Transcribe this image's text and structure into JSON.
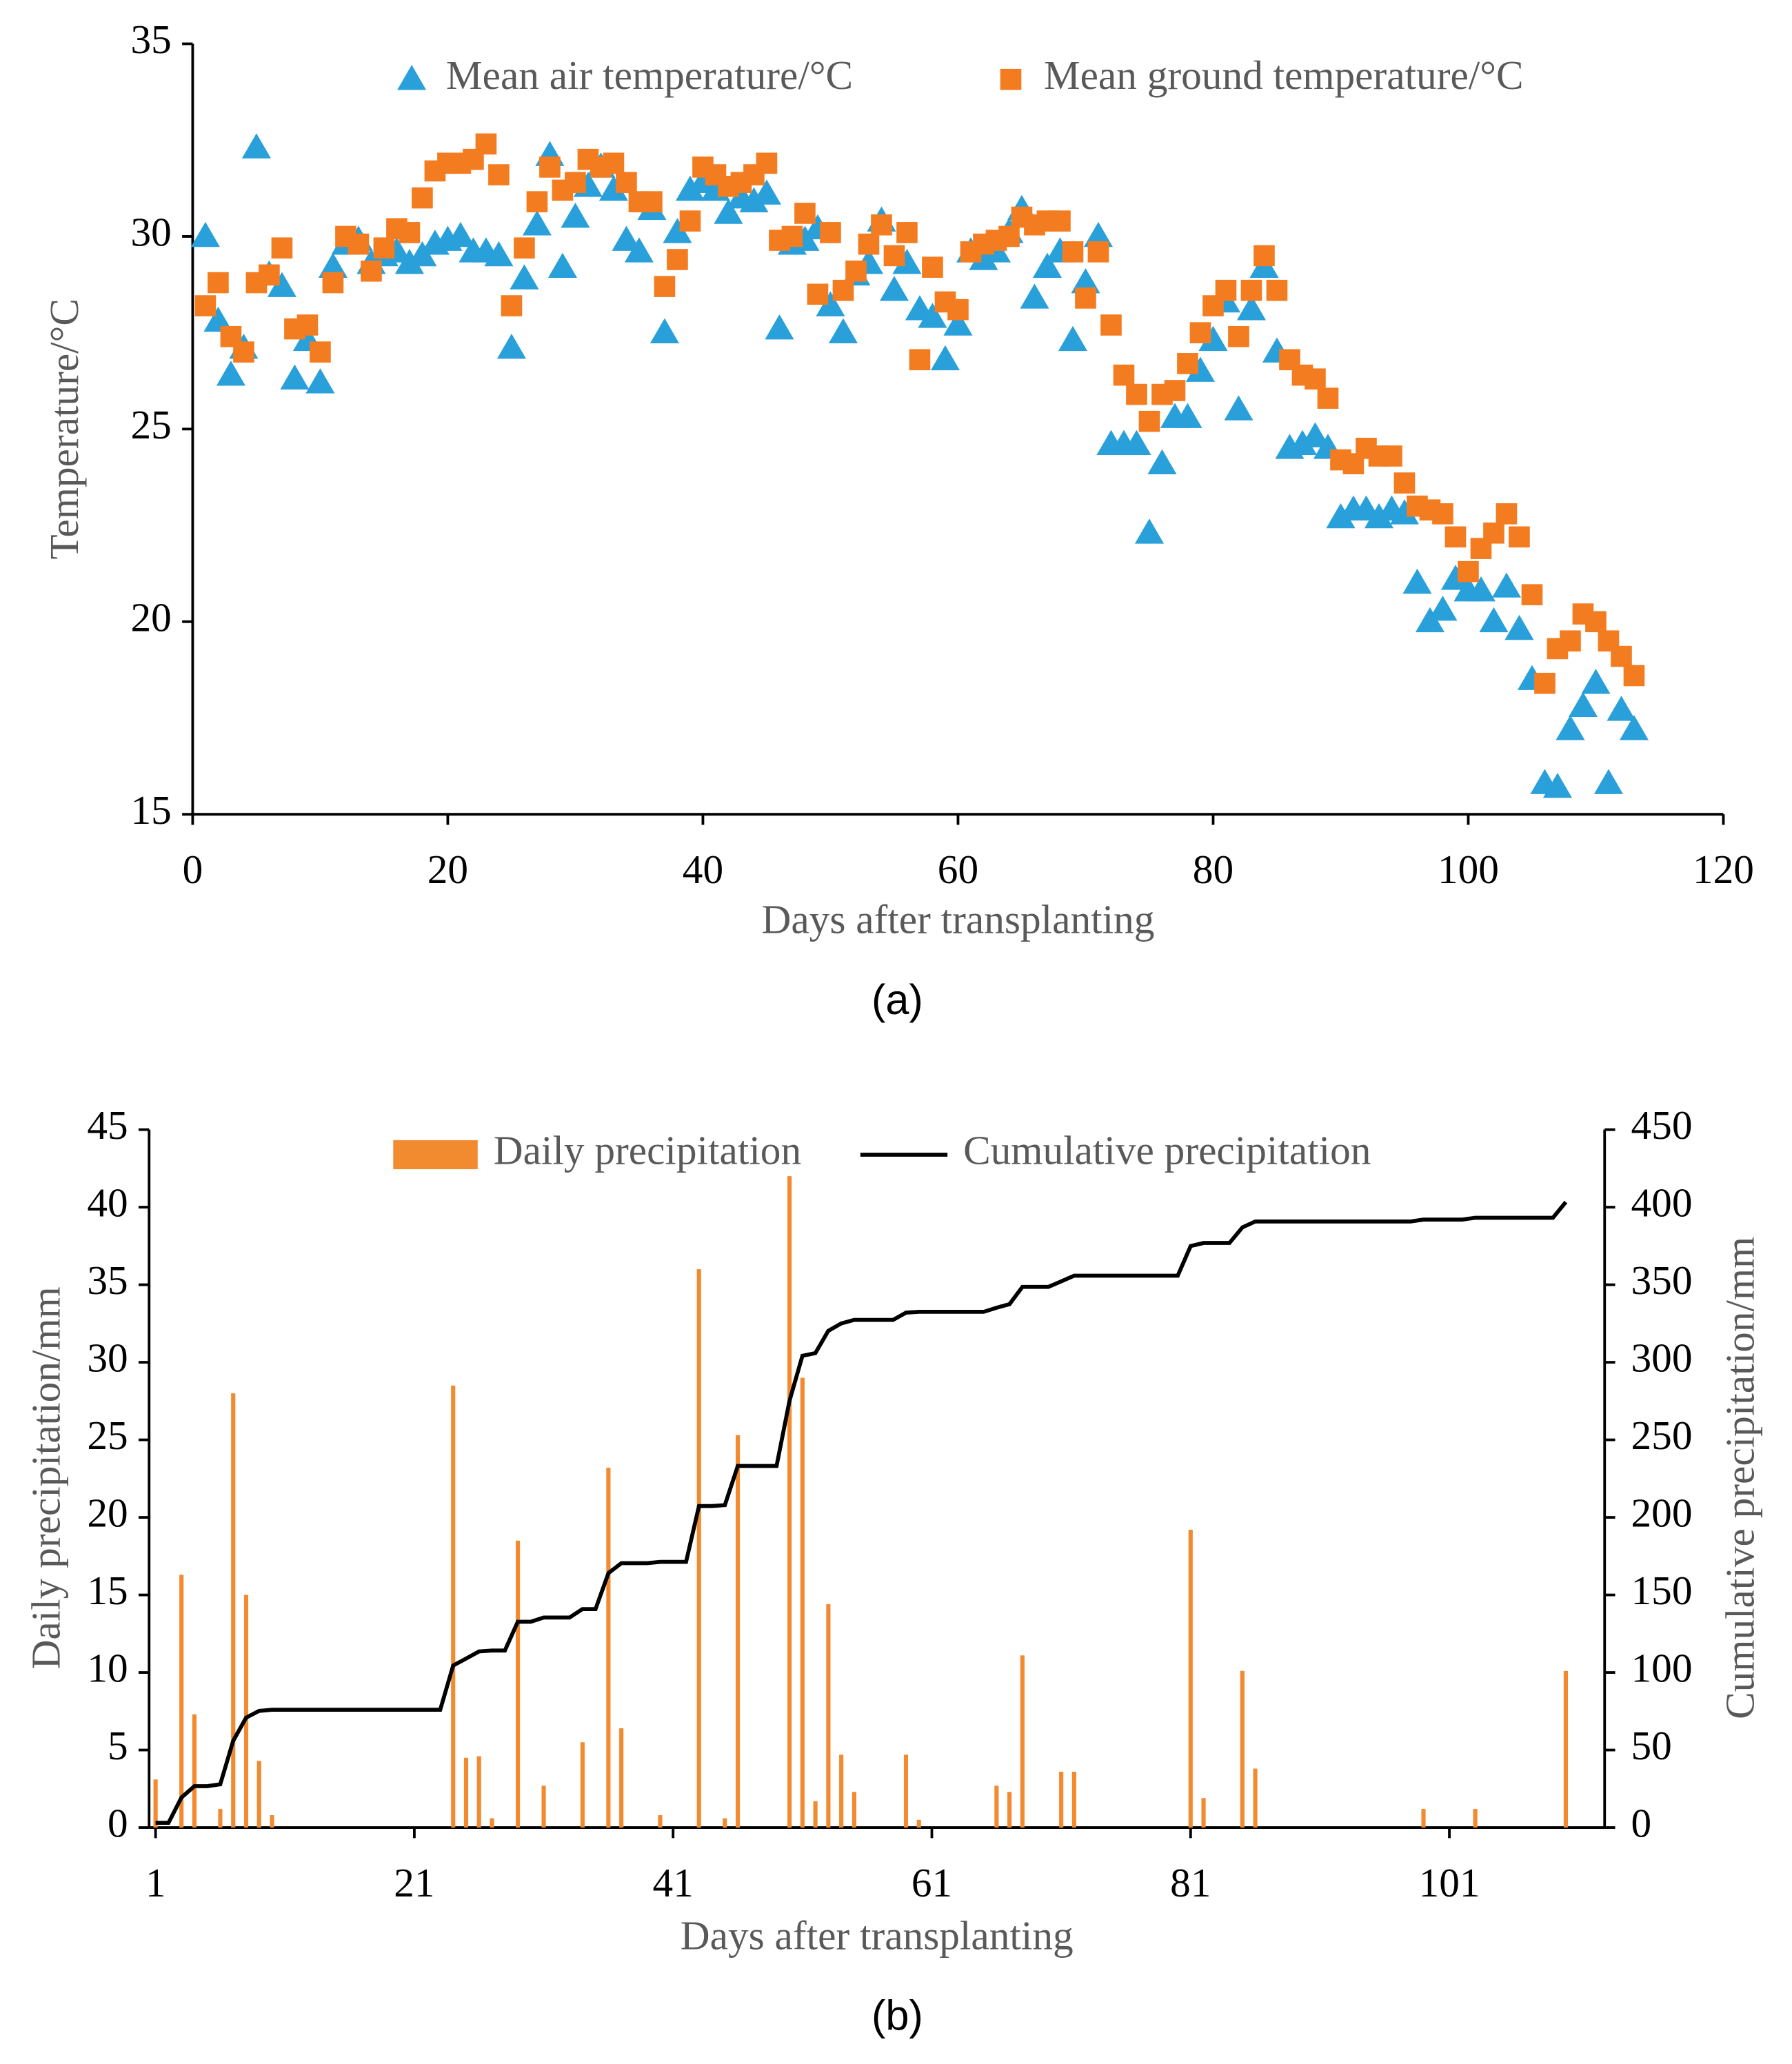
{
  "chart_data": [
    {
      "type": "scatter",
      "label": "(a)",
      "x_label": "Days after transplanting",
      "y_label": "Temperature/°C",
      "x": [
        1,
        2,
        3,
        4,
        5,
        6,
        7,
        8,
        9,
        10,
        11,
        12,
        13,
        14,
        15,
        16,
        17,
        18,
        19,
        20,
        21,
        22,
        23,
        24,
        25,
        26,
        27,
        28,
        29,
        30,
        31,
        32,
        33,
        34,
        35,
        36,
        37,
        38,
        39,
        40,
        41,
        42,
        43,
        44,
        45,
        46,
        47,
        48,
        49,
        50,
        51,
        52,
        53,
        54,
        55,
        56,
        57,
        58,
        59,
        60,
        61,
        62,
        63,
        64,
        65,
        66,
        67,
        68,
        69,
        70,
        71,
        72,
        73,
        74,
        75,
        76,
        77,
        78,
        79,
        80,
        81,
        82,
        83,
        84,
        85,
        86,
        87,
        88,
        89,
        90,
        91,
        92,
        93,
        94,
        95,
        96,
        97,
        98,
        99,
        100,
        101,
        102,
        103,
        104,
        105,
        106,
        107,
        108,
        109,
        110,
        111,
        112,
        113
      ],
      "series": [
        {
          "name": "Mean air temperature/°C",
          "color": "#29a0da",
          "marker": "triangle",
          "values": [
            30.0,
            27.8,
            26.4,
            27.1,
            32.3,
            29.0,
            28.7,
            26.3,
            27.3,
            26.2,
            29.2,
            29.8,
            29.9,
            29.3,
            29.5,
            29.6,
            29.3,
            29.5,
            29.8,
            29.9,
            30.0,
            29.6,
            29.6,
            29.5,
            27.1,
            28.9,
            30.3,
            32.1,
            29.2,
            30.5,
            31.3,
            31.8,
            31.2,
            29.9,
            29.6,
            30.7,
            27.5,
            30.1,
            31.2,
            31.4,
            31.2,
            30.6,
            31.0,
            30.9,
            31.1,
            27.6,
            29.8,
            29.9,
            30.2,
            28.2,
            27.5,
            29.0,
            29.3,
            30.4,
            28.6,
            29.3,
            28.1,
            27.9,
            26.8,
            27.7,
            29.6,
            29.4,
            29.6,
            30.1,
            30.7,
            28.4,
            29.2,
            29.6,
            27.3,
            28.8,
            30.0,
            24.6,
            24.6,
            24.6,
            22.3,
            24.1,
            25.3,
            25.3,
            26.5,
            27.3,
            28.3,
            25.5,
            28.1,
            29.2,
            27.0,
            24.5,
            24.6,
            24.8,
            24.5,
            22.7,
            22.9,
            22.9,
            22.7,
            22.9,
            22.8,
            21.0,
            20.0,
            20.3,
            21.1,
            20.8,
            20.8,
            20.0,
            20.9,
            19.8,
            18.5,
            15.8,
            15.7,
            17.2,
            17.8,
            18.4,
            15.8,
            17.7,
            17.2
          ]
        },
        {
          "name": "Mean ground temperature/°C",
          "color": "#f47c20",
          "marker": "square",
          "values": [
            28.2,
            28.8,
            27.4,
            27.0,
            28.8,
            29.0,
            29.7,
            27.6,
            27.7,
            27.0,
            28.8,
            30.0,
            29.8,
            29.1,
            29.7,
            30.2,
            30.1,
            31.0,
            31.7,
            31.9,
            31.9,
            32.0,
            32.4,
            31.6,
            28.2,
            29.7,
            30.9,
            31.8,
            31.2,
            31.4,
            32.0,
            31.8,
            31.9,
            31.4,
            30.9,
            30.9,
            28.7,
            29.4,
            30.4,
            31.8,
            31.6,
            31.3,
            31.4,
            31.6,
            31.9,
            29.9,
            30.0,
            30.6,
            28.5,
            30.1,
            28.6,
            29.1,
            29.8,
            30.3,
            29.5,
            30.1,
            26.8,
            29.2,
            28.3,
            28.1,
            29.6,
            29.8,
            29.9,
            30.0,
            30.5,
            30.3,
            30.4,
            30.4,
            29.6,
            28.4,
            29.6,
            27.7,
            26.4,
            25.9,
            25.2,
            25.9,
            26.0,
            26.7,
            27.5,
            28.2,
            28.6,
            27.4,
            28.6,
            29.5,
            28.6,
            26.8,
            26.4,
            26.3,
            25.8,
            24.2,
            24.1,
            24.5,
            24.3,
            24.3,
            23.6,
            23.0,
            22.9,
            22.8,
            22.2,
            21.3,
            21.9,
            22.3,
            22.8,
            22.2,
            20.7,
            18.4,
            19.3,
            19.5,
            20.2,
            20.0,
            19.5,
            19.1,
            18.6
          ]
        }
      ],
      "xlim": [
        0,
        120
      ],
      "xticks": [
        0,
        20,
        40,
        60,
        80,
        100,
        120
      ],
      "ylim": [
        15,
        35
      ],
      "yticks": [
        15,
        20,
        25,
        30,
        35
      ],
      "legend": "top"
    },
    {
      "type": "bar",
      "label": "(b)",
      "x_label": "Days after transplanting",
      "y_label": "Daily precipitation/mm",
      "y2_label": "Cumulative precipitation/mm",
      "x": [
        1,
        2,
        3,
        4,
        5,
        6,
        7,
        8,
        9,
        10,
        11,
        12,
        13,
        14,
        15,
        16,
        17,
        18,
        19,
        20,
        21,
        22,
        23,
        24,
        25,
        26,
        27,
        28,
        29,
        30,
        31,
        32,
        33,
        34,
        35,
        36,
        37,
        38,
        39,
        40,
        41,
        42,
        43,
        44,
        45,
        46,
        47,
        48,
        49,
        50,
        51,
        52,
        53,
        54,
        55,
        56,
        57,
        58,
        59,
        60,
        61,
        62,
        63,
        64,
        65,
        66,
        67,
        68,
        69,
        70,
        71,
        72,
        73,
        74,
        75,
        76,
        77,
        78,
        79,
        80,
        81,
        82,
        83,
        84,
        85,
        86,
        87,
        88,
        89,
        90,
        91,
        92,
        93,
        94,
        95,
        96,
        97,
        98,
        99,
        100,
        101,
        102,
        103,
        104,
        105,
        106,
        107,
        108,
        109,
        110
      ],
      "series": [
        {
          "name": "Daily precipitation",
          "color": "#f28a30",
          "type": "bar",
          "values": [
            3.1,
            0,
            16.3,
            7.3,
            0,
            1.2,
            28,
            15,
            4.3,
            0.8,
            0,
            0,
            0,
            0,
            0,
            0,
            0,
            0,
            0,
            0,
            0,
            0,
            0,
            28.5,
            4.5,
            4.6,
            0.6,
            0,
            18.5,
            0,
            2.7,
            0,
            0,
            5.5,
            0,
            23.2,
            6.4,
            0,
            0,
            0.8,
            0,
            0,
            36,
            0,
            0.6,
            25.3,
            0,
            0,
            0,
            42,
            29,
            1.7,
            14.4,
            4.7,
            2.3,
            0,
            0,
            0,
            4.7,
            0.5,
            0,
            0,
            0,
            0,
            0,
            2.7,
            2.3,
            11.1,
            0,
            0,
            3.6,
            3.6,
            0,
            0,
            0,
            0,
            0,
            0,
            0,
            0,
            19.2,
            1.9,
            0,
            0,
            10.1,
            3.8,
            0,
            0,
            0,
            0,
            0,
            0,
            0,
            0,
            0,
            0,
            0,
            0,
            1.2,
            0,
            0,
            0,
            1.2,
            0,
            0,
            0,
            0,
            0,
            0,
            10.1
          ]
        },
        {
          "name": "Cumulative precipitation",
          "color": "#000000",
          "type": "line",
          "axis": "y2",
          "values": [
            3.1,
            3.1,
            19.4,
            26.7,
            26.7,
            27.9,
            55.9,
            70.9,
            75.2,
            76,
            76,
            76,
            76,
            76,
            76,
            76,
            76,
            76,
            76,
            76,
            76,
            76,
            76,
            104.5,
            109,
            113.6,
            114.2,
            114.2,
            132.7,
            132.7,
            135.4,
            135.4,
            135.4,
            140.9,
            140.9,
            164.1,
            170.5,
            170.5,
            170.5,
            171.3,
            171.3,
            171.3,
            207.3,
            207.3,
            207.9,
            233.2,
            233.2,
            233.2,
            233.2,
            275.2,
            304.2,
            305.9,
            320.3,
            325,
            327.3,
            327.3,
            327.3,
            327.3,
            332,
            332.5,
            332.5,
            332.5,
            332.5,
            332.5,
            332.5,
            335.2,
            337.5,
            348.6,
            348.6,
            348.6,
            352.2,
            355.8,
            355.8,
            355.8,
            355.8,
            355.8,
            355.8,
            355.8,
            355.8,
            355.8,
            375,
            376.9,
            376.9,
            376.9,
            387,
            390.8,
            390.8,
            390.8,
            390.8,
            390.8,
            390.8,
            390.8,
            390.8,
            390.8,
            390.8,
            390.8,
            390.8,
            390.8,
            392,
            392,
            392,
            392,
            393.2,
            393.2,
            393.2,
            393.2,
            393.2,
            393.2,
            393.2,
            403.3
          ]
        }
      ],
      "xlim": [
        0.5,
        113
      ],
      "xticks": [
        1,
        21,
        41,
        61,
        81,
        101
      ],
      "ylim": [
        0,
        45
      ],
      "yticks": [
        0,
        5,
        10,
        15,
        20,
        25,
        30,
        35,
        40,
        45
      ],
      "y2lim": [
        0,
        450
      ],
      "y2ticks": [
        0,
        50,
        100,
        150,
        200,
        250,
        300,
        350,
        400,
        450
      ],
      "legend": "top"
    }
  ]
}
